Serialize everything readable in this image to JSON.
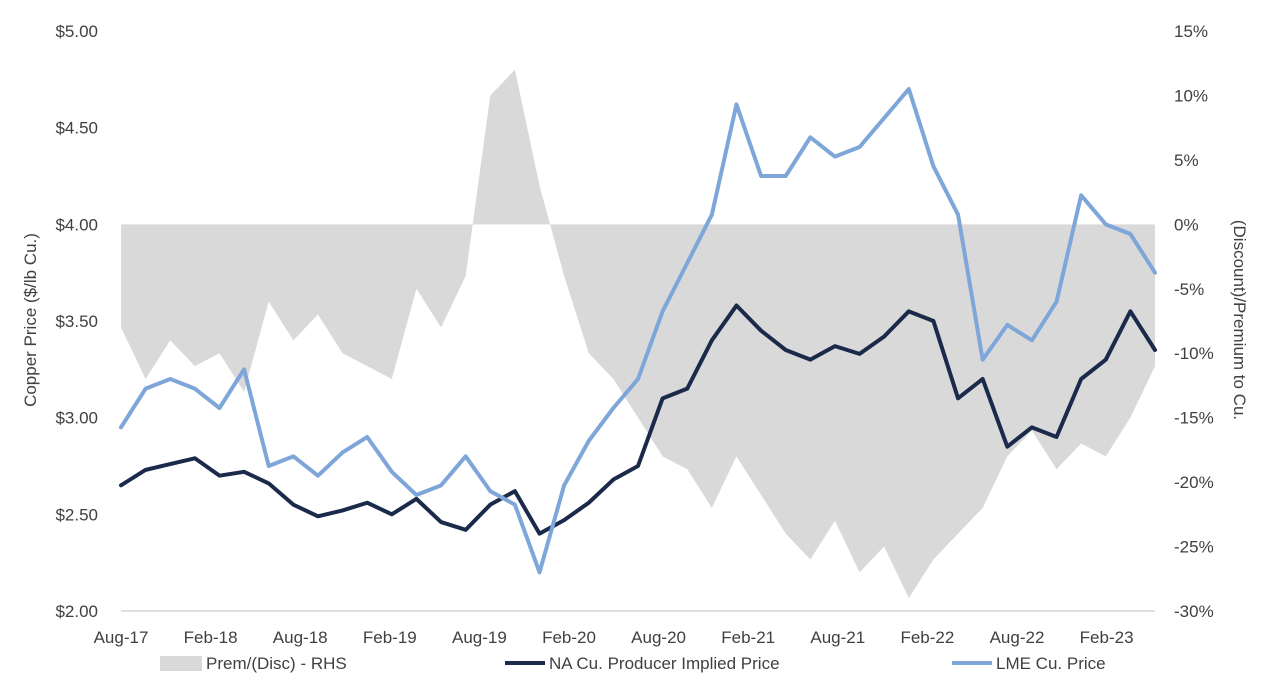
{
  "chart_data": {
    "type": "line",
    "ylabel": "Copper Price ($/lb Cu.)",
    "y2label": "(Discount)/Premium to Cu.",
    "x_ticks": [
      "Aug-17",
      "Feb-18",
      "Aug-18",
      "Feb-19",
      "Aug-19",
      "Feb-20",
      "Aug-20",
      "Feb-21",
      "Aug-21",
      "Feb-22",
      "Aug-22",
      "Feb-23"
    ],
    "y_ticks": [
      "$2.00",
      "$2.50",
      "$3.00",
      "$3.50",
      "$4.00",
      "$4.50",
      "$5.00"
    ],
    "y2_ticks": [
      "-30%",
      "-25%",
      "-20%",
      "-15%",
      "-10%",
      "-5%",
      "0%",
      "5%",
      "10%",
      "15%"
    ],
    "ylim": [
      2.0,
      5.0
    ],
    "y2lim": [
      -30,
      15
    ],
    "grid": false,
    "legend_position": "bottom",
    "x_dates": [
      "Aug-17",
      "Oct-17",
      "Dec-17",
      "Feb-18",
      "Apr-18",
      "Jun-18",
      "Aug-18",
      "Oct-18",
      "Dec-18",
      "Feb-19",
      "Apr-19",
      "Jun-19",
      "Aug-19",
      "Oct-19",
      "Dec-19",
      "Feb-20",
      "Mar-20",
      "Apr-20",
      "May-20",
      "Jun-20",
      "Aug-20",
      "Oct-20",
      "Dec-20",
      "Feb-21",
      "Mar-21",
      "May-21",
      "Jun-21",
      "Aug-21",
      "Oct-21",
      "Nov-21",
      "Dec-21",
      "Feb-22",
      "Mar-22",
      "Apr-22",
      "Jun-22",
      "Jul-22",
      "Aug-22",
      "Oct-22",
      "Dec-22",
      "Feb-23",
      "Mar-23",
      "Apr-23",
      "May-23"
    ],
    "series": [
      {
        "name": "Prem/(Disc) - RHS",
        "axis": "right",
        "kind": "area",
        "color": "#d9d9d9",
        "values": [
          -8,
          -12,
          -9,
          -11,
          -10,
          -13,
          -6,
          -9,
          -7,
          -10,
          -11,
          -12,
          -5,
          -8,
          -4,
          10,
          12,
          3,
          -4,
          -10,
          -12,
          -15,
          -18,
          -19,
          -22,
          -18,
          -21,
          -24,
          -26,
          -23,
          -27,
          -25,
          -29,
          -26,
          -24,
          -22,
          -18,
          -16,
          -19,
          -17,
          -18,
          -15,
          -11
        ]
      },
      {
        "name": "NA Cu. Producer Implied Price",
        "axis": "left",
        "kind": "line",
        "color": "#1b2a4a",
        "values": [
          2.65,
          2.73,
          2.76,
          2.79,
          2.7,
          2.72,
          2.66,
          2.55,
          2.49,
          2.52,
          2.56,
          2.5,
          2.58,
          2.46,
          2.42,
          2.55,
          2.62,
          2.4,
          2.47,
          2.56,
          2.68,
          2.75,
          3.1,
          3.15,
          3.4,
          3.58,
          3.45,
          3.35,
          3.3,
          3.37,
          3.33,
          3.42,
          3.55,
          3.5,
          3.1,
          3.2,
          2.85,
          2.95,
          2.9,
          3.2,
          3.3,
          3.55,
          3.35
        ]
      },
      {
        "name": "LME Cu. Price",
        "axis": "left",
        "kind": "line",
        "color": "#7ea6d9",
        "values": [
          2.95,
          3.15,
          3.2,
          3.15,
          3.05,
          3.25,
          2.75,
          2.8,
          2.7,
          2.82,
          2.9,
          2.72,
          2.6,
          2.65,
          2.8,
          2.62,
          2.55,
          2.2,
          2.65,
          2.88,
          3.05,
          3.2,
          3.55,
          3.8,
          4.05,
          4.62,
          4.25,
          4.25,
          4.45,
          4.35,
          4.4,
          4.55,
          4.7,
          4.3,
          4.05,
          3.3,
          3.48,
          3.4,
          3.6,
          4.15,
          4.0,
          3.95,
          3.75
        ]
      }
    ]
  }
}
